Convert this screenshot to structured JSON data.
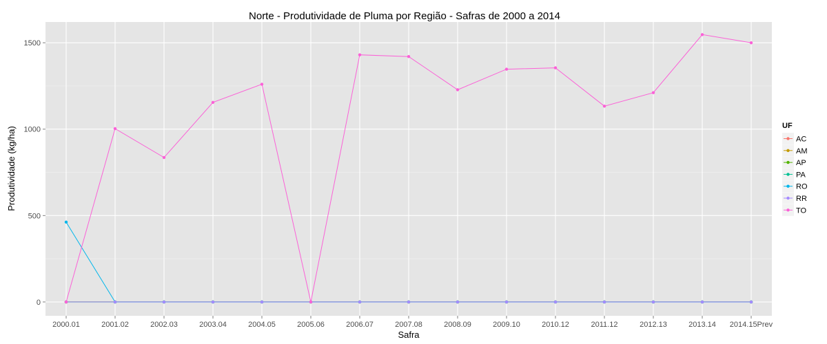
{
  "chart_data": {
    "type": "line",
    "title": "Norte  - Produtividade de Pluma por Região - Safras de 2000 a 2014",
    "xlabel": "Safra",
    "ylabel": "Produtividade (kg/ha)",
    "categories": [
      "2000.01",
      "2001.02",
      "2002.03",
      "2003.04",
      "2004.05",
      "2005.06",
      "2006.07",
      "2007.08",
      "2008.09",
      "2009.10",
      "2010.12",
      "2011.12",
      "2012.13",
      "2013.14",
      "2014.15Prev"
    ],
    "ylim": [
      -80,
      1620
    ],
    "yticks": [
      0,
      500,
      1000,
      1500
    ],
    "grid": true,
    "legend": {
      "title": "UF",
      "placement": "right"
    },
    "series": [
      {
        "name": "AC",
        "color": "#F8766D",
        "values": [
          0,
          0,
          0,
          0,
          0,
          0,
          0,
          0,
          0,
          0,
          0,
          0,
          0,
          0,
          0
        ]
      },
      {
        "name": "AM",
        "color": "#C49A00",
        "values": [
          0,
          0,
          0,
          0,
          0,
          0,
          0,
          0,
          0,
          0,
          0,
          0,
          0,
          0,
          0
        ]
      },
      {
        "name": "AP",
        "color": "#53B400",
        "values": [
          0,
          0,
          0,
          0,
          0,
          0,
          0,
          0,
          0,
          0,
          0,
          0,
          0,
          0,
          0
        ]
      },
      {
        "name": "PA",
        "color": "#00C094",
        "values": [
          0,
          0,
          0,
          0,
          0,
          0,
          0,
          0,
          0,
          0,
          0,
          0,
          0,
          0,
          0
        ]
      },
      {
        "name": "RO",
        "color": "#00B6EB",
        "values": [
          462,
          0,
          0,
          0,
          0,
          0,
          0,
          0,
          0,
          0,
          0,
          0,
          0,
          0,
          0
        ]
      },
      {
        "name": "RR",
        "color": "#A58AFF",
        "values": [
          0,
          0,
          0,
          0,
          0,
          0,
          0,
          0,
          0,
          0,
          0,
          0,
          0,
          0,
          0
        ]
      },
      {
        "name": "TO",
        "color": "#FB61D7",
        "values": [
          0,
          1003,
          836,
          1155,
          1260,
          0,
          1430,
          1420,
          1228,
          1347,
          1355,
          1133,
          1211,
          1547,
          1500
        ]
      }
    ]
  }
}
